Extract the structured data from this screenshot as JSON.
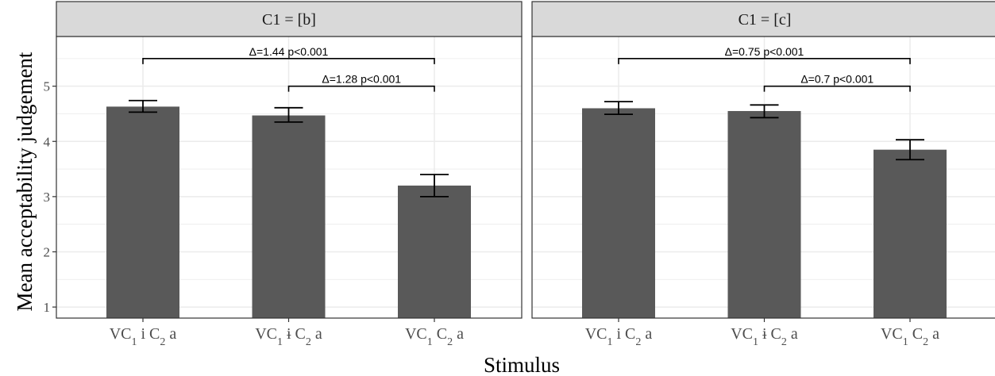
{
  "chart_data": {
    "type": "bar",
    "xlabel": "Stimulus",
    "ylabel": "Mean acceptability judgement",
    "ylim": [
      0.8,
      5.9
    ],
    "yticks": [
      1,
      2,
      3,
      4,
      5
    ],
    "grid": true,
    "colors": {
      "bar": "#595959",
      "strip": "#d9d9d9",
      "grid": "#ebebeb",
      "border": "#333333"
    },
    "categories": [
      {
        "base": "VC",
        "sub1": "1",
        "mid": " i C",
        "sub2": "2",
        "tail": " a"
      },
      {
        "base": "VC",
        "sub1": "1",
        "mid": " ɨ C",
        "sub2": "2",
        "tail": " a"
      },
      {
        "base": "VC",
        "sub1": "1",
        "mid": " C",
        "sub2": "2",
        "tail": " a"
      }
    ],
    "panels": [
      {
        "title": "C1 = [b]",
        "values": [
          4.63,
          4.47,
          3.2
        ],
        "error_low": [
          4.53,
          4.35,
          3.0
        ],
        "error_high": [
          4.74,
          4.61,
          3.4
        ],
        "comparisons": [
          {
            "from": 0,
            "to": 2,
            "y": 5.5,
            "label": "Δ=1.44 p<0.001"
          },
          {
            "from": 1,
            "to": 2,
            "y": 5.0,
            "label": "Δ=1.28 p<0.001"
          }
        ]
      },
      {
        "title": "C1 = [c]",
        "values": [
          4.6,
          4.55,
          3.85
        ],
        "error_low": [
          4.49,
          4.43,
          3.67
        ],
        "error_high": [
          4.72,
          4.66,
          4.03
        ],
        "comparisons": [
          {
            "from": 0,
            "to": 2,
            "y": 5.5,
            "label": "Δ=0.75 p<0.001"
          },
          {
            "from": 1,
            "to": 2,
            "y": 5.0,
            "label": "Δ=0.7 p<0.001"
          }
        ]
      }
    ]
  }
}
